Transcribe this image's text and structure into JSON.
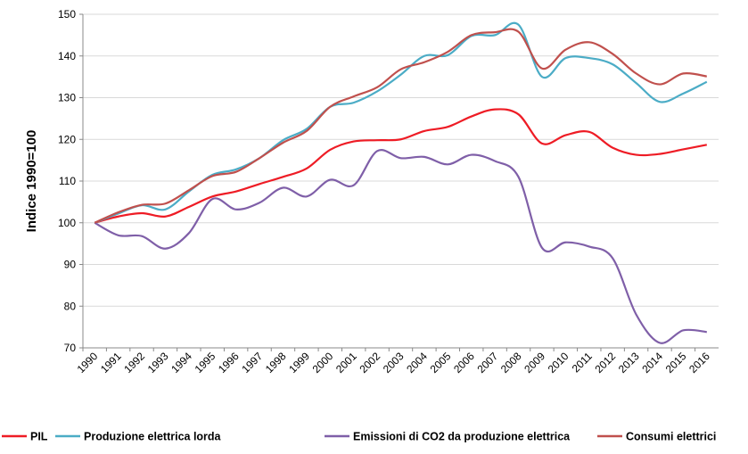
{
  "chart_data": {
    "type": "line",
    "y_label": "Indice 1990=100",
    "categories": [
      "1990",
      "1991",
      "1992",
      "1993",
      "1994",
      "1995",
      "1996",
      "1997",
      "1998",
      "1999",
      "2000",
      "2001",
      "2002",
      "2003",
      "2004",
      "2005",
      "2006",
      "2007",
      "2008",
      "2009",
      "2010",
      "2011",
      "2012",
      "2013",
      "2014",
      "2015",
      "2016"
    ],
    "series": [
      {
        "name": "PIL",
        "color": "#ee1c25",
        "values": [
          100,
          101.5,
          102.3,
          101.5,
          103.8,
          106.3,
          107.5,
          109.3,
          111.0,
          113.0,
          117.5,
          119.5,
          119.8,
          120.0,
          122.0,
          123.0,
          125.5,
          127.2,
          126.0,
          119.0,
          121.0,
          121.8,
          118.0,
          116.3,
          116.5,
          117.6,
          118.7
        ]
      },
      {
        "name": "Produzione elettrica lorda",
        "color": "#4bacc6",
        "values": [
          100,
          102.2,
          104.2,
          103.2,
          107.5,
          111.5,
          112.8,
          115.5,
          119.8,
          122.5,
          127.8,
          128.8,
          131.5,
          135.5,
          140.0,
          140.2,
          144.8,
          145.0,
          147.5,
          135.0,
          139.5,
          139.5,
          138.0,
          133.5,
          129.0,
          131.0,
          133.8
        ]
      },
      {
        "name": "Emissioni di CO2 da produzione elettrica",
        "color": "#7f5fa8",
        "values": [
          100,
          97.0,
          96.8,
          93.8,
          97.5,
          105.7,
          103.2,
          104.8,
          108.4,
          106.3,
          110.3,
          109.0,
          117.2,
          115.5,
          115.8,
          114.0,
          116.3,
          114.8,
          111.0,
          94.0,
          95.3,
          94.3,
          91.5,
          78.0,
          71.2,
          74.2,
          73.8
        ]
      },
      {
        "name": "Consumi elettrici",
        "color": "#c0504d",
        "values": [
          100,
          102.5,
          104.3,
          104.6,
          107.8,
          111.2,
          112.2,
          115.5,
          119.2,
          122.0,
          127.8,
          130.3,
          132.5,
          136.8,
          138.5,
          141.0,
          145.0,
          145.7,
          145.8,
          137.0,
          141.5,
          143.3,
          140.5,
          135.8,
          133.2,
          135.8,
          135.1
        ]
      }
    ],
    "ylim": [
      70,
      150
    ],
    "yticks": [
      70,
      80,
      90,
      100,
      110,
      120,
      130,
      140,
      150
    ],
    "grid": true,
    "legend": "bottom"
  }
}
